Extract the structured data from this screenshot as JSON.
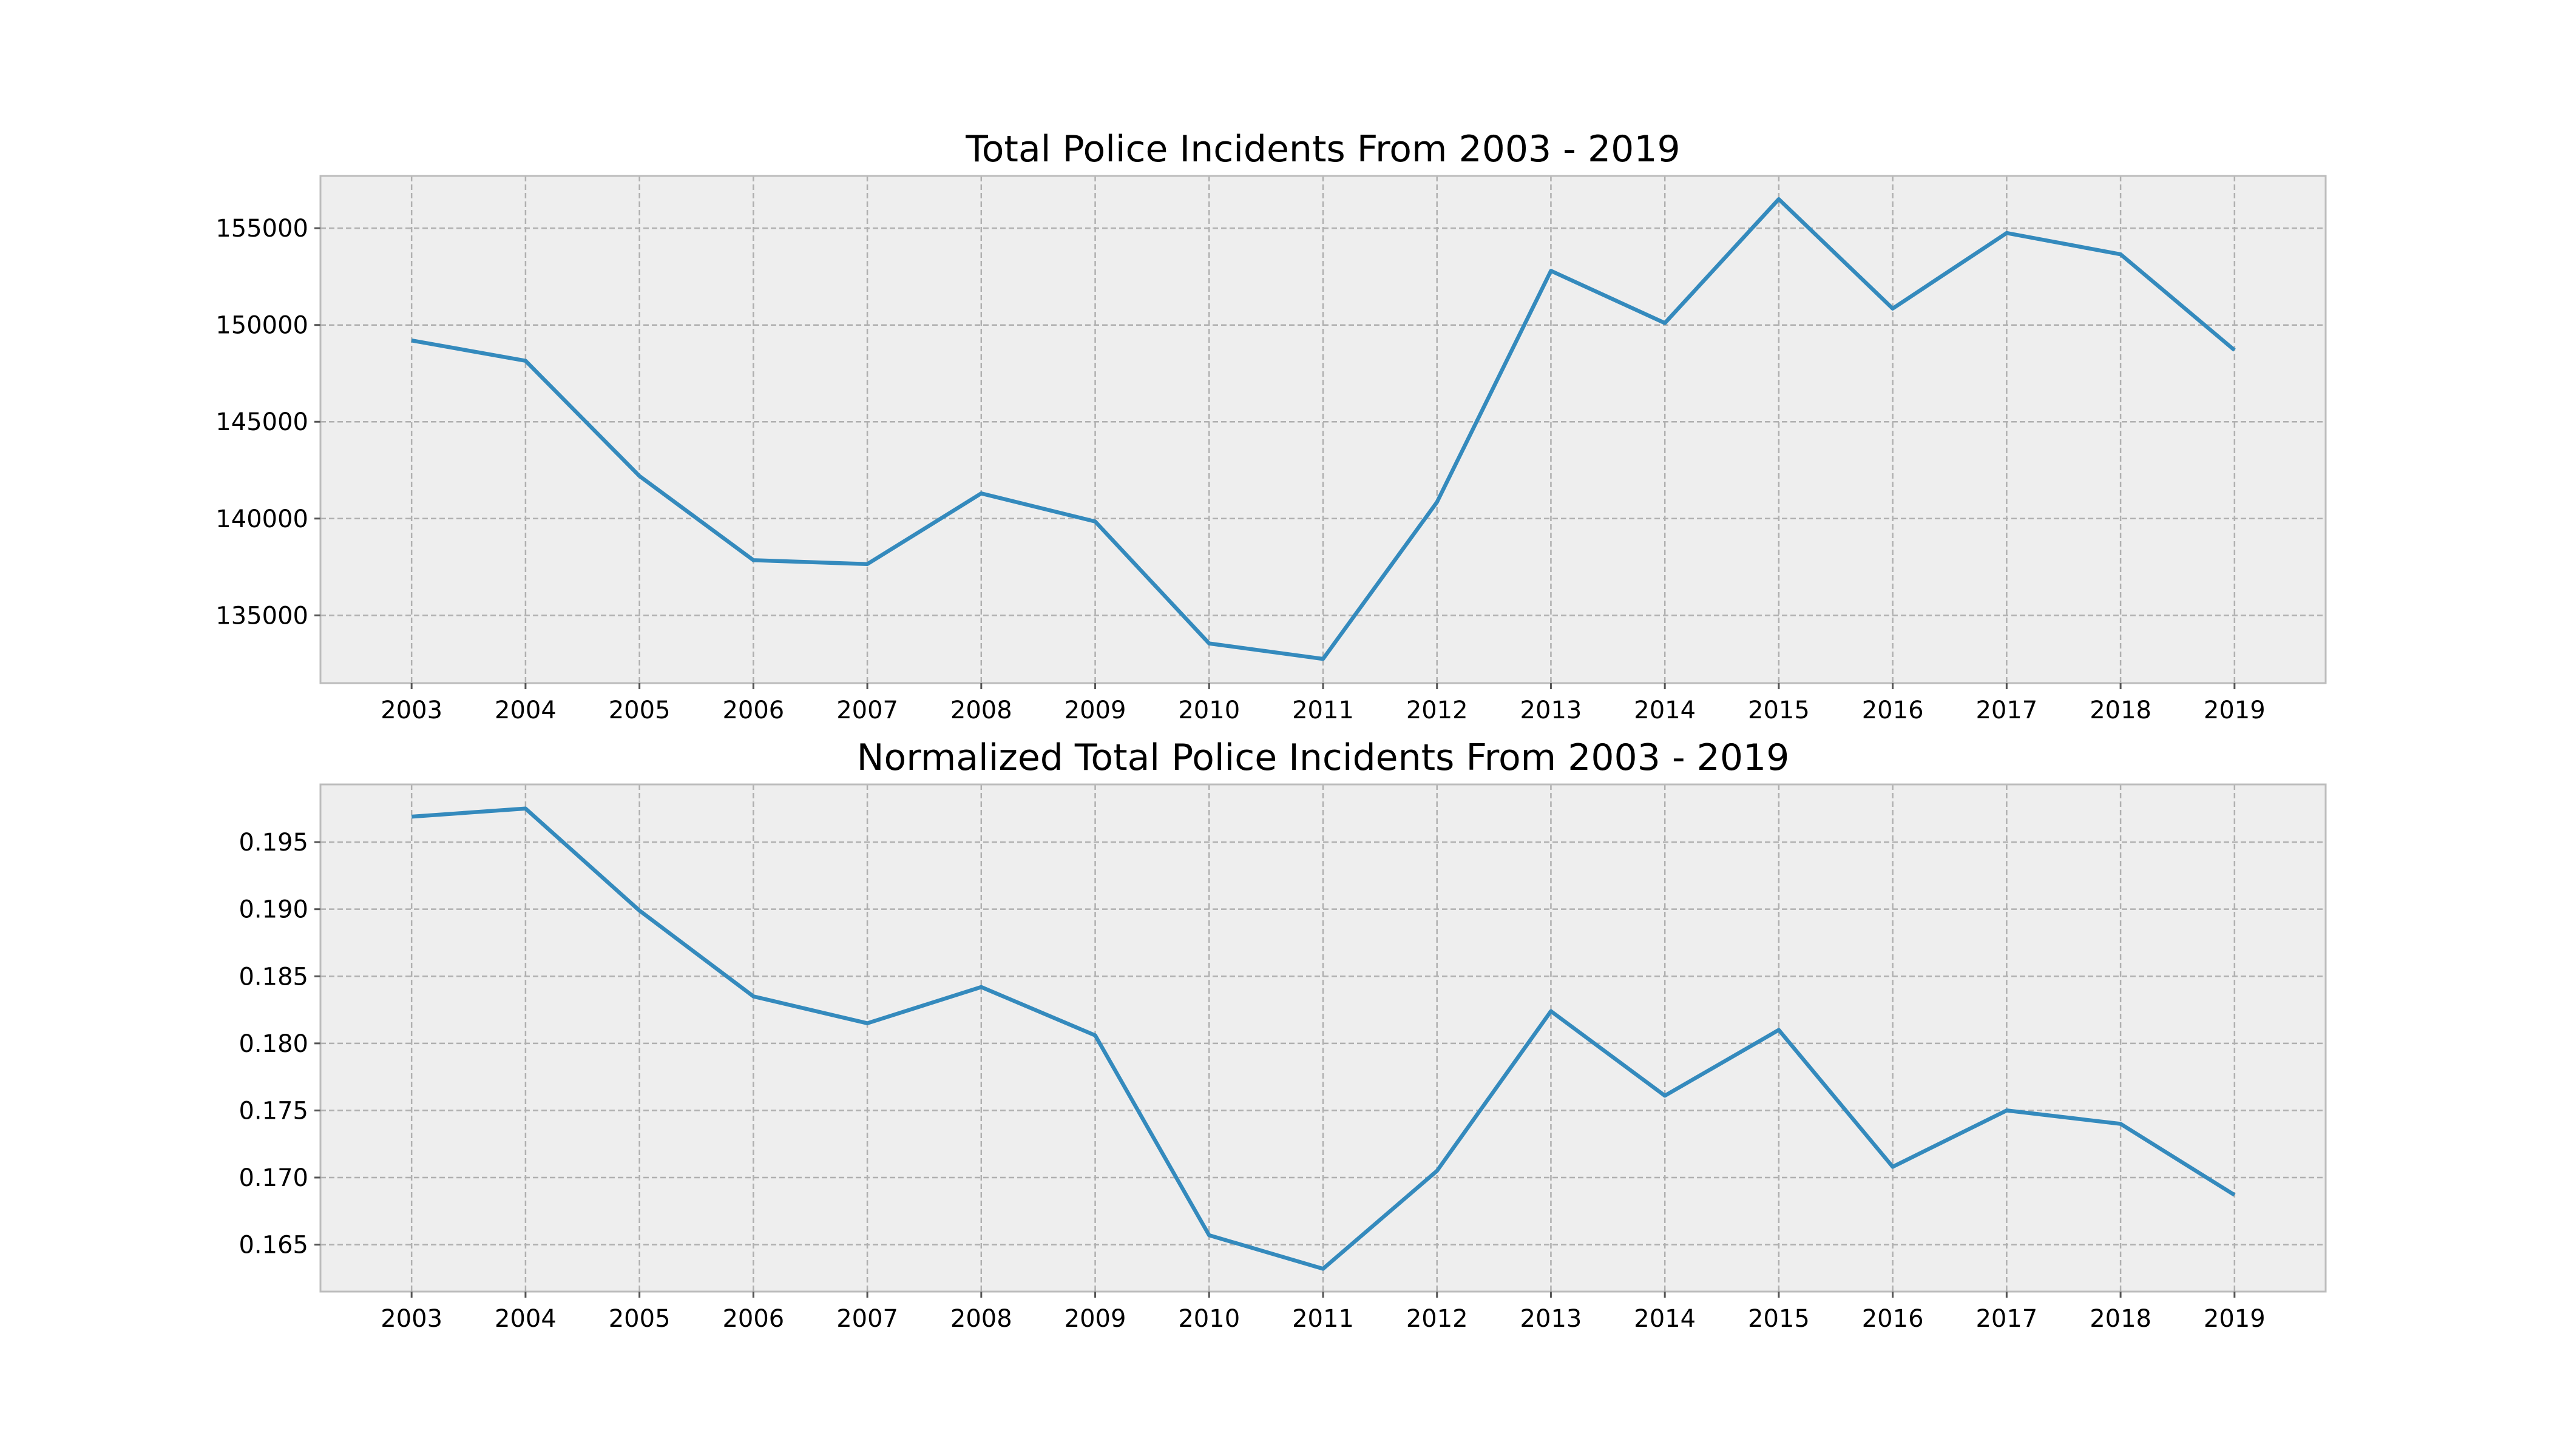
{
  "chart_data": [
    {
      "type": "line",
      "title": "Total Police Incidents From 2003 - 2019",
      "xlabel": "",
      "ylabel": "",
      "x": [
        2003,
        2004,
        2005,
        2006,
        2007,
        2008,
        2009,
        2010,
        2011,
        2012,
        2013,
        2014,
        2015,
        2016,
        2017,
        2018,
        2019
      ],
      "xlim": [
        2002.2,
        2019.8
      ],
      "ylim": [
        131500,
        157700
      ],
      "yticks": [
        135000,
        140000,
        145000,
        150000,
        155000
      ],
      "ytick_labels": [
        "135000",
        "140000",
        "145000",
        "150000",
        "155000"
      ],
      "grid": true,
      "series": [
        {
          "color": "#348abd",
          "values": [
            149200,
            148150,
            142200,
            137850,
            137650,
            141300,
            139850,
            133550,
            132750,
            140850,
            152800,
            150100,
            156500,
            150850,
            154750,
            153650,
            148700
          ]
        }
      ]
    },
    {
      "type": "line",
      "title": "Normalized Total Police Incidents From 2003 - 2019",
      "xlabel": "",
      "ylabel": "",
      "x": [
        2003,
        2004,
        2005,
        2006,
        2007,
        2008,
        2009,
        2010,
        2011,
        2012,
        2013,
        2014,
        2015,
        2016,
        2017,
        2018,
        2019
      ],
      "xlim": [
        2002.2,
        2019.8
      ],
      "ylim": [
        0.1615,
        0.1993
      ],
      "yticks": [
        0.165,
        0.17,
        0.175,
        0.18,
        0.185,
        0.19,
        0.195
      ],
      "ytick_labels": [
        "0.165",
        "0.170",
        "0.175",
        "0.180",
        "0.185",
        "0.190",
        "0.195"
      ],
      "grid": true,
      "series": [
        {
          "color": "#348abd",
          "values": [
            0.1969,
            0.1975,
            0.1899,
            0.1835,
            0.1815,
            0.1842,
            0.1806,
            0.1657,
            0.1632,
            0.1705,
            0.1824,
            0.1761,
            0.181,
            0.1708,
            0.175,
            0.174,
            0.1687
          ]
        }
      ]
    }
  ]
}
